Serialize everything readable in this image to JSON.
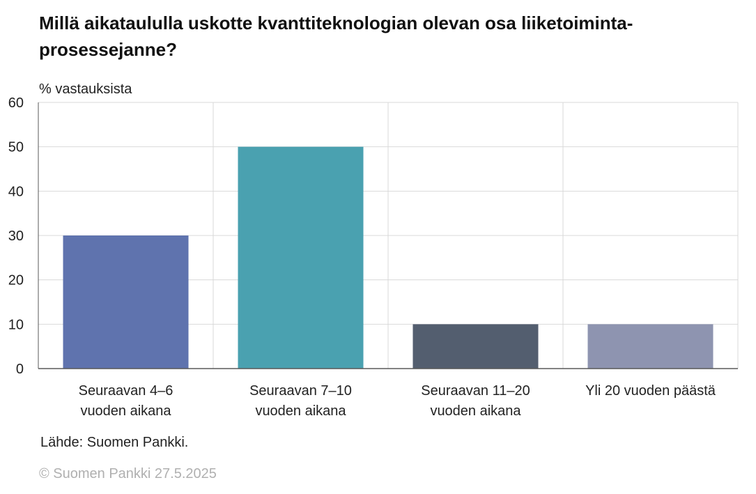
{
  "chart_data": {
    "type": "bar",
    "title": "Millä aikataululla uskotte kvanttiteknologian olevan osa liiketoiminta-prosessejanne?",
    "ylabel": "% vastauksista",
    "xlabel": "",
    "ylim": [
      0,
      60
    ],
    "yticks": [
      0,
      10,
      20,
      30,
      40,
      50,
      60
    ],
    "categories": [
      [
        "Seuraavan 4–6",
        "vuoden aikana"
      ],
      [
        "Seuraavan 7–10",
        "vuoden aikana"
      ],
      [
        "Seuraavan 11–20",
        "vuoden aikana"
      ],
      [
        "Yli 20 vuoden päästä"
      ]
    ],
    "values": [
      30,
      50,
      10,
      10
    ],
    "colors": [
      "#5f73ae",
      "#4aa1b0",
      "#535e6f",
      "#8e94b0"
    ],
    "grid": true
  },
  "source": "Lähde: Suomen Pankki.",
  "copyright": "© Suomen Pankki 27.5.2025"
}
